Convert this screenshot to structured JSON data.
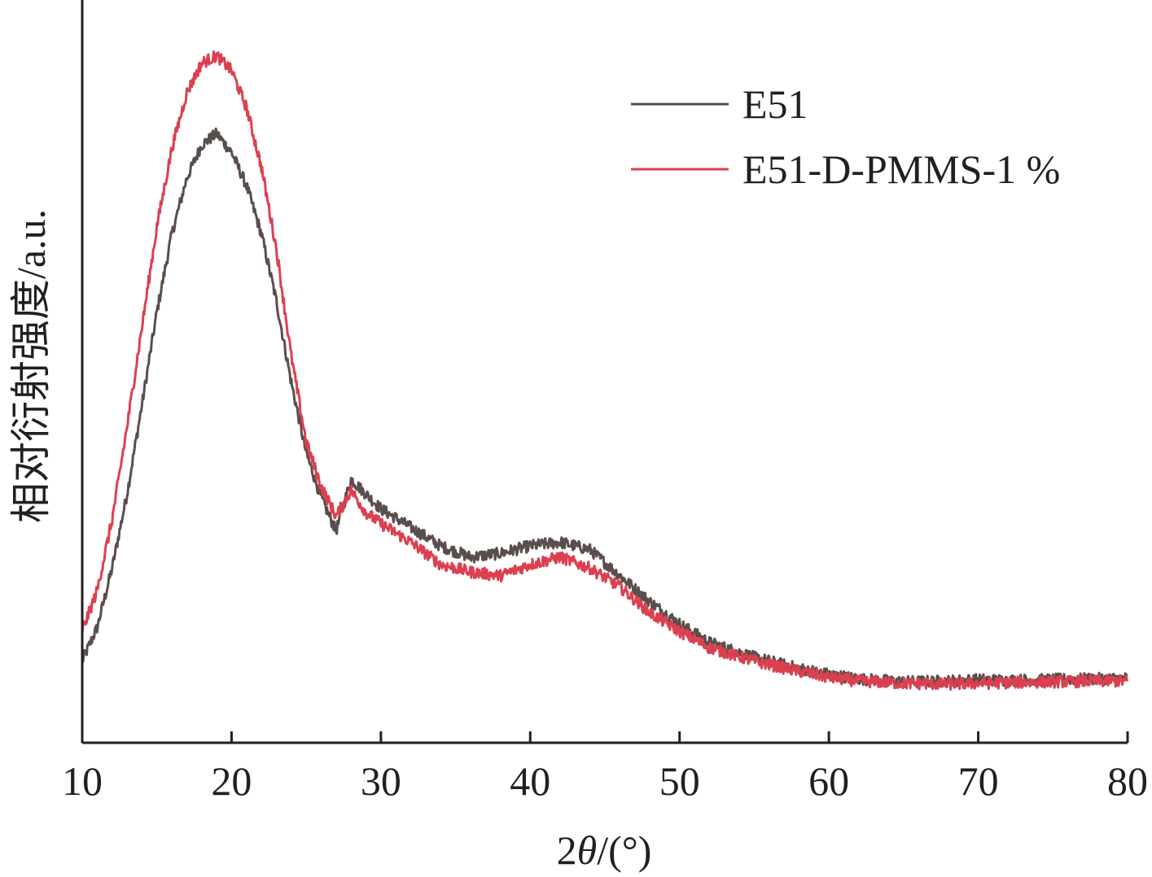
{
  "chart_data": {
    "type": "line",
    "xlabel_prefix": "2",
    "xlabel_theta": "θ",
    "xlabel_suffix": "/(°)",
    "ylabel": "相对衍射强度/a.u.",
    "xlim": [
      10,
      80
    ],
    "ylim": [
      0,
      100
    ],
    "x_ticks": [
      "10",
      "20",
      "30",
      "40",
      "50",
      "60",
      "70",
      "80"
    ],
    "y_ticks": [],
    "grid": false,
    "legend_position": "top-right",
    "series": [
      {
        "name": "E51",
        "color": "#5a4e4c",
        "x": [
          10,
          11,
          12,
          13,
          14,
          15,
          16,
          17,
          18,
          19,
          20,
          21,
          22,
          23,
          24,
          25,
          26,
          27,
          28,
          29,
          30,
          32,
          34,
          36,
          38,
          40,
          42,
          44,
          46,
          48,
          50,
          52,
          55,
          58,
          60,
          62,
          65,
          68,
          70,
          72,
          75,
          78,
          80
        ],
        "y": [
          11.0,
          15.5,
          23.5,
          33.5,
          45.5,
          58.0,
          68.5,
          76.0,
          80.5,
          82.0,
          79.5,
          75.0,
          68.5,
          59.5,
          48.5,
          39.0,
          33.0,
          28.5,
          35.5,
          33.5,
          31.5,
          29.0,
          26.5,
          25.0,
          25.5,
          26.5,
          27.0,
          26.0,
          22.5,
          19.0,
          16.0,
          13.5,
          11.5,
          10.0,
          9.2,
          8.6,
          8.2,
          8.3,
          8.5,
          8.4,
          8.5,
          8.6,
          8.7
        ]
      },
      {
        "name": "E51-D-PMMS-1 %",
        "color": "#dc4050",
        "x": [
          10,
          11,
          12,
          13,
          14,
          15,
          16,
          17,
          18,
          19,
          20,
          21,
          22,
          23,
          24,
          25,
          26,
          27,
          28,
          29,
          30,
          32,
          34,
          36,
          38,
          40,
          42,
          44,
          46,
          48,
          50,
          52,
          55,
          58,
          60,
          62,
          65,
          68,
          70,
          72,
          75,
          78,
          80
        ],
        "y": [
          15.0,
          20.5,
          30.0,
          42.5,
          56.0,
          69.5,
          80.0,
          87.5,
          91.5,
          92.5,
          90.5,
          85.5,
          77.5,
          66.5,
          52.0,
          40.5,
          34.5,
          30.5,
          34.0,
          31.0,
          29.5,
          27.0,
          24.0,
          23.0,
          22.5,
          24.0,
          25.0,
          23.5,
          21.0,
          17.5,
          15.0,
          12.8,
          11.0,
          9.6,
          8.8,
          8.3,
          8.0,
          7.9,
          8.0,
          8.1,
          8.2,
          8.3,
          8.3
        ]
      }
    ]
  }
}
